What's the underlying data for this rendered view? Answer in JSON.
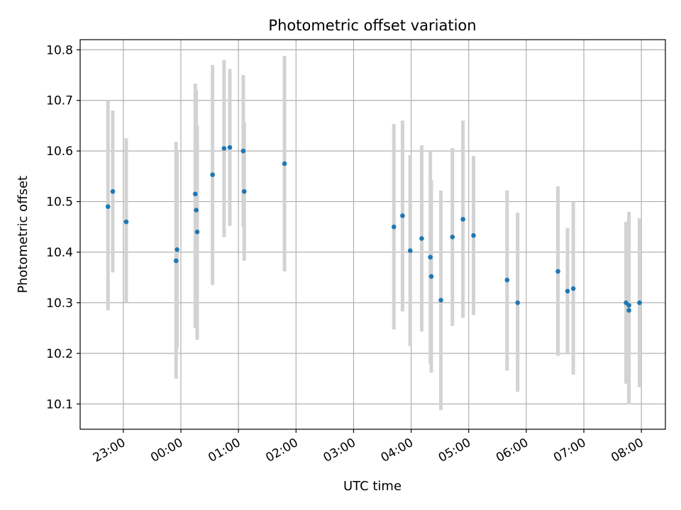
{
  "chart_data": {
    "type": "scatter",
    "title": "Photometric offset variation",
    "xlabel": "UTC time",
    "ylabel": "Photometric offset",
    "x_ticks": [
      "23:00",
      "00:00",
      "01:00",
      "02:00",
      "03:00",
      "04:00",
      "05:00",
      "06:00",
      "07:00",
      "08:00"
    ],
    "y_ticks": [
      "10.1",
      "10.2",
      "10.3",
      "10.4",
      "10.5",
      "10.6",
      "10.7",
      "10.8"
    ],
    "xlim": [
      "22:15",
      "08:25"
    ],
    "ylim": [
      10.05,
      10.82
    ],
    "grid": true,
    "colors": {
      "points": "#1f77b4",
      "error_bars": "#d3d3d3",
      "grid": "#b0b0b0"
    },
    "points": [
      {
        "t": "22:44",
        "y": 10.49,
        "lo": 10.285,
        "hi": 10.7
      },
      {
        "t": "22:49",
        "y": 10.52,
        "lo": 10.36,
        "hi": 10.68
      },
      {
        "t": "23:03",
        "y": 10.46,
        "lo": 10.3,
        "hi": 10.625
      },
      {
        "t": "23:55",
        "y": 10.383,
        "lo": 10.15,
        "hi": 10.618
      },
      {
        "t": "23:56",
        "y": 10.405,
        "lo": 10.21,
        "hi": 10.6
      },
      {
        "t": "00:15",
        "y": 10.515,
        "lo": 10.25,
        "hi": 10.733
      },
      {
        "t": "00:16",
        "y": 10.483,
        "lo": 10.28,
        "hi": 10.72
      },
      {
        "t": "00:17",
        "y": 10.44,
        "lo": 10.227,
        "hi": 10.65
      },
      {
        "t": "00:33",
        "y": 10.553,
        "lo": 10.335,
        "hi": 10.77
      },
      {
        "t": "00:45",
        "y": 10.605,
        "lo": 10.43,
        "hi": 10.78
      },
      {
        "t": "00:51",
        "y": 10.607,
        "lo": 10.452,
        "hi": 10.762
      },
      {
        "t": "01:05",
        "y": 10.6,
        "lo": 10.45,
        "hi": 10.75
      },
      {
        "t": "01:06",
        "y": 10.52,
        "lo": 10.383,
        "hi": 10.657
      },
      {
        "t": "01:48",
        "y": 10.575,
        "lo": 10.362,
        "hi": 10.788
      },
      {
        "t": "03:42",
        "y": 10.45,
        "lo": 10.247,
        "hi": 10.653
      },
      {
        "t": "03:51",
        "y": 10.472,
        "lo": 10.283,
        "hi": 10.66
      },
      {
        "t": "03:59",
        "y": 10.403,
        "lo": 10.214,
        "hi": 10.592
      },
      {
        "t": "04:11",
        "y": 10.427,
        "lo": 10.243,
        "hi": 10.611
      },
      {
        "t": "04:20",
        "y": 10.39,
        "lo": 10.18,
        "hi": 10.6
      },
      {
        "t": "04:21",
        "y": 10.352,
        "lo": 10.162,
        "hi": 10.542
      },
      {
        "t": "04:31",
        "y": 10.305,
        "lo": 10.088,
        "hi": 10.522
      },
      {
        "t": "04:43",
        "y": 10.43,
        "lo": 10.254,
        "hi": 10.606
      },
      {
        "t": "04:54",
        "y": 10.465,
        "lo": 10.27,
        "hi": 10.66
      },
      {
        "t": "05:05",
        "y": 10.433,
        "lo": 10.276,
        "hi": 10.59
      },
      {
        "t": "05:40",
        "y": 10.345,
        "lo": 10.166,
        "hi": 10.522
      },
      {
        "t": "05:51",
        "y": 10.3,
        "lo": 10.124,
        "hi": 10.478
      },
      {
        "t": "06:33",
        "y": 10.362,
        "lo": 10.195,
        "hi": 10.53
      },
      {
        "t": "06:43",
        "y": 10.323,
        "lo": 10.198,
        "hi": 10.448
      },
      {
        "t": "06:49",
        "y": 10.328,
        "lo": 10.158,
        "hi": 10.5
      },
      {
        "t": "07:44",
        "y": 10.3,
        "lo": 10.14,
        "hi": 10.46
      },
      {
        "t": "07:47",
        "y": 10.285,
        "lo": 10.099,
        "hi": 10.47
      },
      {
        "t": "07:47",
        "y": 10.295,
        "lo": 10.11,
        "hi": 10.48
      },
      {
        "t": "07:58",
        "y": 10.3,
        "lo": 10.133,
        "hi": 10.467
      }
    ]
  }
}
